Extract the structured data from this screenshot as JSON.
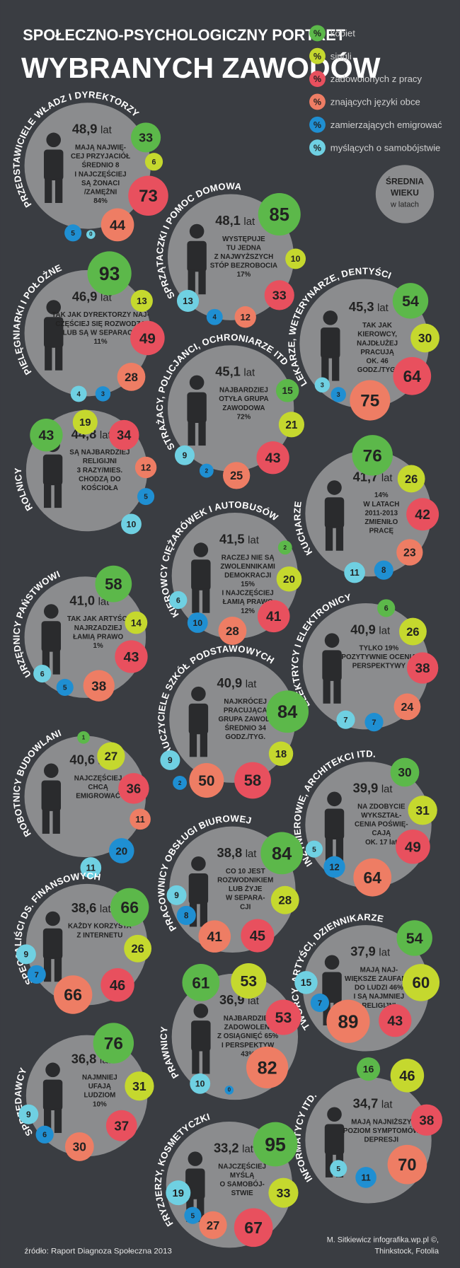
{
  "header": {
    "title": [
      "SPOŁECZNO-PSYCHOLOGICZNY PORTRET",
      "WYBRANYCH ZAWODÓW"
    ]
  },
  "legend": {
    "symbol": "%",
    "items": [
      {
        "label": "kobiet",
        "color": "#5cb84a"
      },
      {
        "label": "singli",
        "color": "#c5d82e"
      },
      {
        "label": "zadowolonych z pracy",
        "color": "#e8505e"
      },
      {
        "label": "znających języki obce",
        "color": "#ee7d64"
      },
      {
        "label": "zamierzających emigrować",
        "color": "#1f8fd2"
      },
      {
        "label": "myślących o samobójstwie",
        "color": "#6fd0e2"
      }
    ]
  },
  "age_badge": {
    "lines": [
      "ŚREDNIA",
      "WIEKU"
    ],
    "note": "w latach"
  },
  "age_unit": "lat",
  "professions": [
    {
      "name": "PRZEDSTAWICIELE WŁADZ I DYREKTORZY",
      "age": "48,9",
      "description": [
        "MAJĄ NAJWIĘ-",
        "CEJ PRZYJACIÓŁ",
        "ŚREDNIO 8",
        "I NAJCZĘŚCIEJ",
        "SĄ ŻONACI",
        "/ZAMĘŻNI",
        "84%"
      ],
      "values": [
        33,
        6,
        73,
        44,
        5,
        0
      ]
    },
    {
      "name": "SPRZĄTACZKI I POMOC DOMOWA",
      "age": "48,1",
      "description": [
        "WYSTĘPUJE",
        "TU JEDNA",
        "Z NAJWYŻSZYCH",
        "STÓP BEZROBOCIA",
        "17%"
      ],
      "values": [
        85,
        10,
        33,
        12,
        4,
        13
      ]
    },
    {
      "name": "PIELĘGNIARKI I POŁOŻNE",
      "age": "46,9",
      "description": [
        "TAK JAK DYREKTORZY NAJ-",
        "CZĘŚCIEJ SIĘ ROZWODZĄ",
        "LUB SĄ W SEPARACJI",
        "11%"
      ],
      "values": [
        93,
        13,
        49,
        28,
        3,
        4
      ]
    },
    {
      "name": "LEKARZE, WETERYNARZE, DENTYŚCI",
      "age": "45,3",
      "description": [
        "TAK JAK",
        "KIEROWCY,",
        "NAJDŁUŻEJ",
        "PRACUJĄ",
        "OK. 46",
        "GODZ./TYG."
      ],
      "values": [
        54,
        30,
        64,
        75,
        3,
        3
      ]
    },
    {
      "name": "STRAŻACY, POLICJANCI, OCHRONIARZE ITD",
      "age": "45,1",
      "description": [
        "NAJBARDZIEJ",
        "OTYŁA GRUPA",
        "ZAWODOWA",
        "72%"
      ],
      "values": [
        15,
        21,
        43,
        25,
        2,
        9
      ]
    },
    {
      "name": "ROLNICY",
      "age": "44,8",
      "description": [
        "SĄ NAJBARDZIEJ",
        "RELIGIJNI",
        "3 RAZY/MIES.",
        "CHODZĄ DO",
        "KOŚCIOŁA"
      ],
      "values": [
        43,
        19,
        34,
        12,
        5,
        10
      ]
    },
    {
      "name": "KUCHARZE",
      "age": "41,7",
      "description": [
        "14%",
        "W LATACH",
        "2011-2013",
        "ZMIENIŁO",
        "PRACĘ"
      ],
      "values": [
        76,
        26,
        42,
        23,
        8,
        11
      ]
    },
    {
      "name": "KIEROWCY CIĘŻARÓWEK I AUTOBUSÓW",
      "age": "41,5",
      "description": [
        "RACZEJ NIE SĄ",
        "ZWOLENNIKAMI",
        "DEMOKRACJI",
        "15%",
        "I NAJCZĘŚCIEJ",
        "ŁAMIĄ PRAWO",
        "12%"
      ],
      "values": [
        2,
        20,
        41,
        28,
        10,
        6
      ]
    },
    {
      "name": "URZĘDNICY PAŃSTWOWI",
      "age": "41,0",
      "description": [
        "TAK JAK ARTYŚCI",
        "NAJRZADZIEJ",
        "ŁAMIĄ PRAWO",
        "1%"
      ],
      "values": [
        58,
        14,
        43,
        38,
        5,
        6
      ]
    },
    {
      "name": "ELEKTRYCY I ELEKTRONICY",
      "age": "40,9",
      "description": [
        "TYLKO 19%",
        "POZYTYWNIE OCENIA",
        "PERSPEKTYWY"
      ],
      "values": [
        6,
        26,
        38,
        24,
        7,
        7
      ]
    },
    {
      "name": "NAUCZYCIELE SZKÓŁ PODSTAWOWYCH",
      "age": "40,9",
      "description": [
        "NAJKRÓCEJ",
        "PRACUJĄCA",
        "GRUPA ZAWOD.",
        "ŚREDNIO 34",
        "GODZ./TYG."
      ],
      "values": [
        84,
        18,
        58,
        50,
        2,
        9
      ]
    },
    {
      "name": "ROBOTNICY BUDOWLANI",
      "age": "40,6",
      "description": [
        "NAJCZĘŚCIEJ",
        "CHCĄ",
        "EMIGROWAĆ"
      ],
      "values": [
        1,
        27,
        36,
        11,
        20,
        11
      ]
    },
    {
      "name": "INŻYNIEROWIE, ARCHITEKCI ITD.",
      "age": "39,9",
      "description": [
        "NA ZDOBYCIE",
        "WYKSZTAŁ-",
        "CENIA POŚWIĘ-",
        "CAJĄ",
        "OK. 17 lat"
      ],
      "values": [
        30,
        31,
        49,
        64,
        12,
        5
      ]
    },
    {
      "name": "PRACOWNICY OBSŁUGI BIUROWEJ",
      "age": "38,8",
      "description": [
        "CO 10 JEST",
        "ROZWODNIKIEM",
        "LUB ŻYJE",
        "W SEPARA-",
        "CJI"
      ],
      "values": [
        84,
        28,
        45,
        41,
        8,
        9
      ]
    },
    {
      "name": "SPECJALIŚCI DS. FINANSOWYCH",
      "age": "38,6",
      "description": [
        "KAŻDY KORZYSTA",
        "Z INTERNETU"
      ],
      "values": [
        66,
        26,
        46,
        66,
        7,
        9
      ]
    },
    {
      "name": "TWÓRCY, ARTYŚCI, DZIENNIKARZE",
      "age": "37,9",
      "description": [
        "MAJĄ NAJ-",
        "WIĘKSZE ZAUFANIE",
        "DO LUDZI 46%",
        "I SĄ NAJMNIEJ",
        "RELIGIJNI"
      ],
      "values": [
        54,
        60,
        43,
        89,
        7,
        15
      ]
    },
    {
      "name": "PRAWNICY",
      "age": "36,9",
      "description": [
        "NAJBARDZIEJ",
        "ZADOWOLENI",
        "Z OSIĄGNIĘĆ 65%",
        "I PERSPEKTYW",
        "43%"
      ],
      "values": [
        61,
        53,
        53,
        82,
        0,
        10
      ]
    },
    {
      "name": "SPRZEDAWCY",
      "age": "36,8",
      "description": [
        "NAJMNIEJ",
        "UFAJĄ",
        "LUDZIOM",
        "10%"
      ],
      "values": [
        76,
        31,
        37,
        30,
        6,
        9
      ]
    },
    {
      "name": "INFORMATYCY ITD.",
      "age": "34,7",
      "description": [
        "MAJĄ NAJNIŻSZY",
        "POZIOM SYMPTOMÓW",
        "DEPRESJI"
      ],
      "values": [
        16,
        46,
        38,
        70,
        11,
        5
      ]
    },
    {
      "name": "FRYZJERZY, KOSMETYCZKI",
      "age": "33,2",
      "description": [
        "NAJCZĘŚCIEJ",
        "MYŚLĄ",
        "O SAMOBÓJ-",
        "STWIE"
      ],
      "values": [
        95,
        33,
        67,
        27,
        5,
        19
      ]
    }
  ],
  "footer": {
    "source": "źródło: Raport Diagnoza Społeczna 2013",
    "credit": [
      "M. Sitkiewicz infografika.wp.pl ©,",
      "Thinkstock, Fotolia"
    ]
  }
}
